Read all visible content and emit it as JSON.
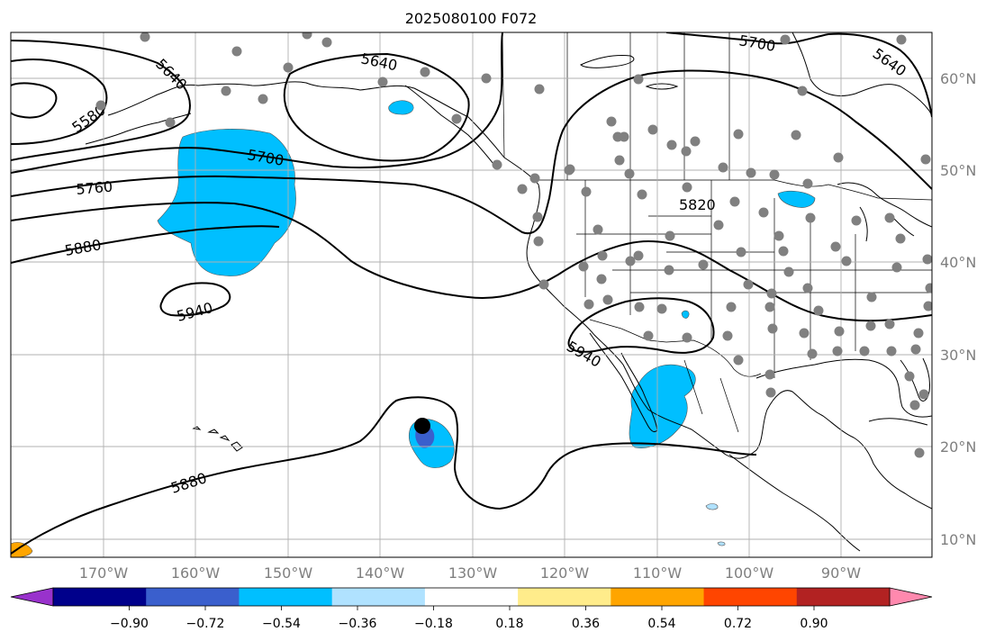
{
  "title": "2025080100 F072",
  "map": {
    "lon_labels": [
      "170°W",
      "160°W",
      "150°W",
      "140°W",
      "130°W",
      "120°W",
      "110°W",
      "100°W",
      "90°W"
    ],
    "lat_labels": [
      "60°N",
      "50°N",
      "40°N",
      "30°N",
      "20°N",
      "10°N"
    ],
    "contour_labels": [
      "5580",
      "5640",
      "5640",
      "5640",
      "5700",
      "5700",
      "5760",
      "5820",
      "5880",
      "5880",
      "5940",
      "5940"
    ],
    "contour_color": "#000000",
    "station_color": "#808080",
    "storm_center_color": "#000000"
  },
  "colorbar": {
    "tick_labels": [
      "−0.90",
      "−0.72",
      "−0.54",
      "−0.36",
      "−0.18",
      "0.18",
      "0.36",
      "0.54",
      "0.72",
      "0.90"
    ],
    "colors": [
      "#9932CC",
      "#00008B",
      "#3A5FCD",
      "#00BFFF",
      "#B0E2FF",
      "#FFFFFF",
      "#FFEC8B",
      "#FFA500",
      "#FF4500",
      "#B22222",
      "#FF89AE"
    ]
  }
}
